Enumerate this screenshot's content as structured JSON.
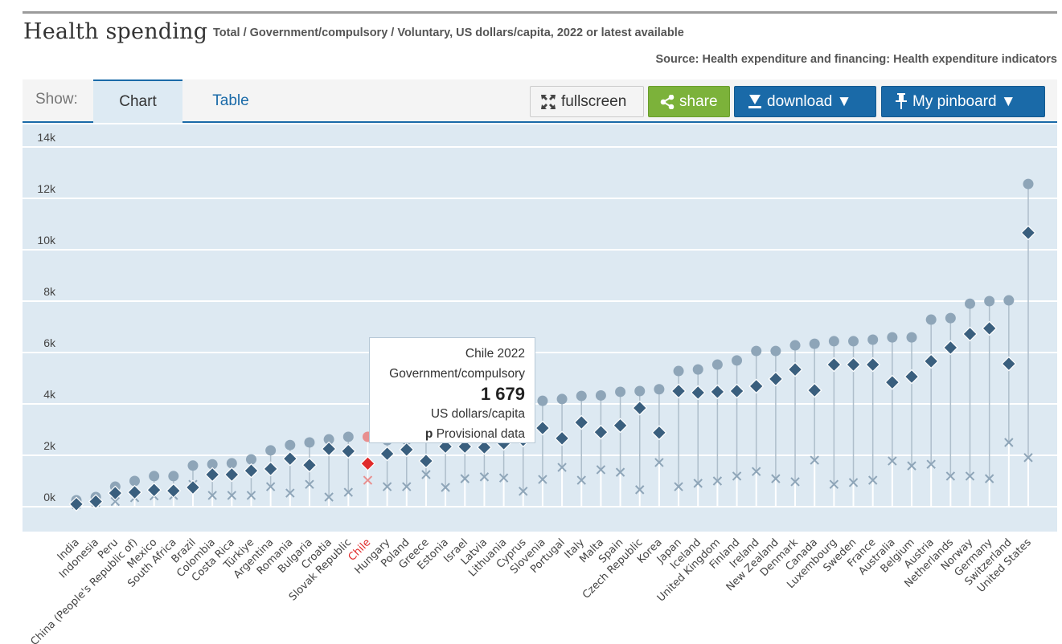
{
  "header": {
    "title": "Health spending",
    "subtitle": "Total / Government/compulsory / Voluntary, US dollars/capita, 2022 or latest available",
    "source": "Source: Health expenditure and financing: Health expenditure indicators"
  },
  "toolbar": {
    "show_label": "Show:",
    "tabs": [
      {
        "label": "Chart",
        "active": true
      },
      {
        "label": "Table",
        "active": false
      }
    ],
    "fullscreen_label": "fullscreen",
    "share_label": "share",
    "download_label": "download ▼",
    "pinboard_label": "My pinboard ▼"
  },
  "tooltip": {
    "title": "Chile 2022",
    "series": "Government/compulsory",
    "value": "1 679",
    "unit": "US dollars/capita",
    "flag": "p",
    "flag_text": "Provisional data"
  },
  "colors": {
    "total": "#8ea5b8",
    "government": "#3a5f7e",
    "voluntary": "#8ea5b8",
    "highlight": "#e02a2a",
    "highlight_light": "#e88f8f",
    "stem": "#aebecb",
    "plot_bg": "#dde9f2"
  },
  "chart_data": {
    "type": "scatter",
    "title": "Health spending",
    "subtitle": "Total / Government/compulsory / Voluntary, US dollars/capita, 2022 or latest available",
    "xlabel": "",
    "ylabel": "",
    "ylim": [
      -1000,
      14500
    ],
    "yticks": [
      0,
      2000,
      4000,
      6000,
      8000,
      10000,
      12000,
      14000
    ],
    "ytick_labels": [
      "0k",
      "2k",
      "4k",
      "6k",
      "8k",
      "10k",
      "12k",
      "14k"
    ],
    "grid": true,
    "highlighted": "Chile",
    "categories": [
      "India",
      "Indonesia",
      "Peru",
      "China (People's Republic of)",
      "Mexico",
      "South Africa",
      "Brazil",
      "Colombia",
      "Costa Rica",
      "Türkiye",
      "Argentina",
      "Romania",
      "Bulgaria",
      "Croatia",
      "Slovak Republic",
      "Chile",
      "Hungary",
      "Poland",
      "Greece",
      "Estonia",
      "Israel",
      "Latvia",
      "Lithuania",
      "Cyprus",
      "Slovenia",
      "Portugal",
      "Italy",
      "Malta",
      "Spain",
      "Czech Republic",
      "Korea",
      "Japan",
      "Iceland",
      "United Kingdom",
      "Finland",
      "Ireland",
      "New Zealand",
      "Denmark",
      "Canada",
      "Luxembourg",
      "Sweden",
      "France",
      "Australia",
      "Belgium",
      "Austria",
      "Netherlands",
      "Norway",
      "Germany",
      "Switzerland",
      "United States"
    ],
    "series": [
      {
        "name": "Total",
        "marker": "circle",
        "values": [
          250,
          375,
          780,
          1000,
          1190,
          1190,
          1600,
          1650,
          1690,
          1840,
          2190,
          2400,
          2500,
          2620,
          2720,
          2720,
          2590,
          2600,
          2700,
          2750,
          2800,
          2850,
          3100,
          3220,
          4120,
          4190,
          4310,
          4330,
          4470,
          4500,
          4570,
          5280,
          5340,
          5530,
          5690,
          6060,
          6060,
          6280,
          6340,
          6440,
          6440,
          6500,
          6590,
          6590,
          7280,
          7340,
          7900,
          8000,
          8030,
          12560
        ]
      },
      {
        "name": "Government/compulsory",
        "marker": "diamond",
        "values": [
          100,
          200,
          530,
          560,
          650,
          620,
          750,
          1250,
          1250,
          1400,
          1470,
          1870,
          1620,
          2250,
          2160,
          1679,
          2060,
          2220,
          1780,
          2340,
          2340,
          2310,
          2470,
          2600,
          3060,
          2660,
          3280,
          2900,
          3160,
          3840,
          2880,
          4500,
          4440,
          4470,
          4500,
          4690,
          4970,
          5340,
          4530,
          5530,
          5530,
          5530,
          4840,
          5060,
          5660,
          6190,
          6720,
          6940,
          5560,
          10660
        ]
      },
      {
        "name": "Voluntary",
        "marker": "x",
        "values": [
          80,
          165,
          200,
          350,
          420,
          440,
          870,
          440,
          440,
          440,
          780,
          530,
          870,
          375,
          560,
          1030,
          780,
          780,
          1250,
          750,
          1090,
          1160,
          1120,
          600,
          1060,
          1530,
          1030,
          1440,
          1340,
          660,
          1720,
          780,
          910,
          1000,
          1190,
          1370,
          1090,
          970,
          1810,
          870,
          940,
          1030,
          1780,
          1590,
          1650,
          1190,
          1190,
          1090,
          2500,
          1910
        ]
      }
    ]
  }
}
